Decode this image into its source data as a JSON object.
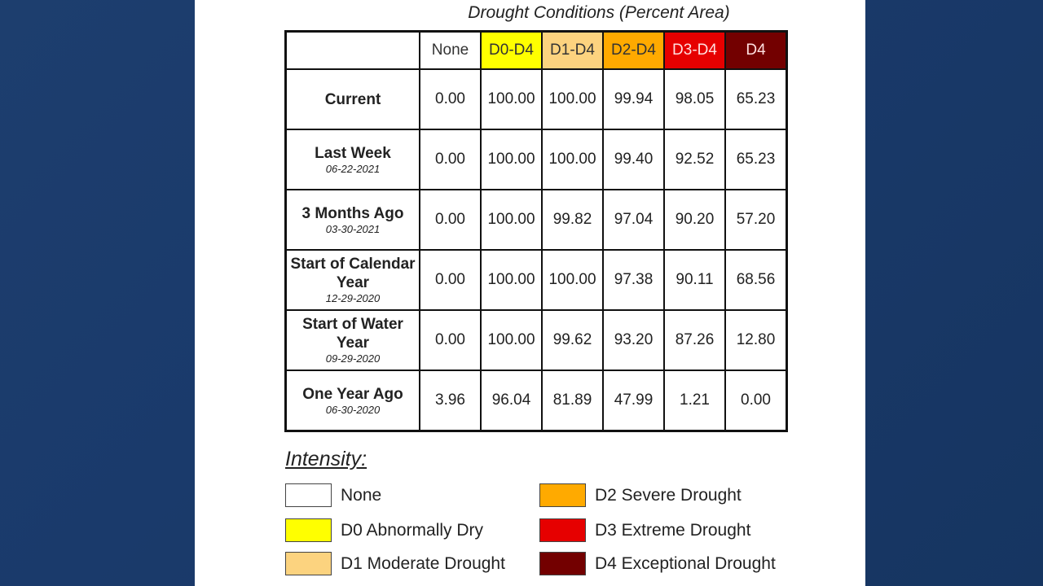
{
  "title": "Drought Conditions (Percent Area)",
  "columns": [
    {
      "label": "None",
      "bg": "#ffffff",
      "fg": "#333333"
    },
    {
      "label": "D0-D4",
      "bg": "#ffff00",
      "fg": "#333333"
    },
    {
      "label": "D1-D4",
      "bg": "#fcd37f",
      "fg": "#333333"
    },
    {
      "label": "D2-D4",
      "bg": "#ffaa00",
      "fg": "#333333"
    },
    {
      "label": "D3-D4",
      "bg": "#e60000",
      "fg": "#ffe0e0"
    },
    {
      "label": "D4",
      "bg": "#730000",
      "fg": "#ffe0e0"
    }
  ],
  "rows": [
    {
      "label": "Current",
      "date": "",
      "values": [
        "0.00",
        "100.00",
        "100.00",
        "99.94",
        "98.05",
        "65.23"
      ]
    },
    {
      "label": "Last Week",
      "date": "06-22-2021",
      "values": [
        "0.00",
        "100.00",
        "100.00",
        "99.40",
        "92.52",
        "65.23"
      ]
    },
    {
      "label": "3 Months Ago",
      "date": "03-30-2021",
      "values": [
        "0.00",
        "100.00",
        "99.82",
        "97.04",
        "90.20",
        "57.20"
      ]
    },
    {
      "label": "Start of Calendar Year",
      "date": "12-29-2020",
      "values": [
        "0.00",
        "100.00",
        "100.00",
        "97.38",
        "90.11",
        "68.56"
      ]
    },
    {
      "label": "Start of Water Year",
      "date": "09-29-2020",
      "values": [
        "0.00",
        "100.00",
        "99.62",
        "93.20",
        "87.26",
        "12.80"
      ]
    },
    {
      "label": "One Year Ago",
      "date": "06-30-2020",
      "values": [
        "3.96",
        "96.04",
        "81.89",
        "47.99",
        "1.21",
        "0.00"
      ]
    }
  ],
  "legend": {
    "title": "Intensity:",
    "items": [
      {
        "label": "None",
        "color": "#ffffff"
      },
      {
        "label": "D0 Abnormally Dry",
        "color": "#ffff00"
      },
      {
        "label": "D1 Moderate Drought",
        "color": "#fcd37f"
      },
      {
        "label": "D2 Severe Drought",
        "color": "#ffaa00"
      },
      {
        "label": "D3 Extreme Drought",
        "color": "#e60000"
      },
      {
        "label": "D4 Exceptional Drought",
        "color": "#730000"
      }
    ]
  }
}
